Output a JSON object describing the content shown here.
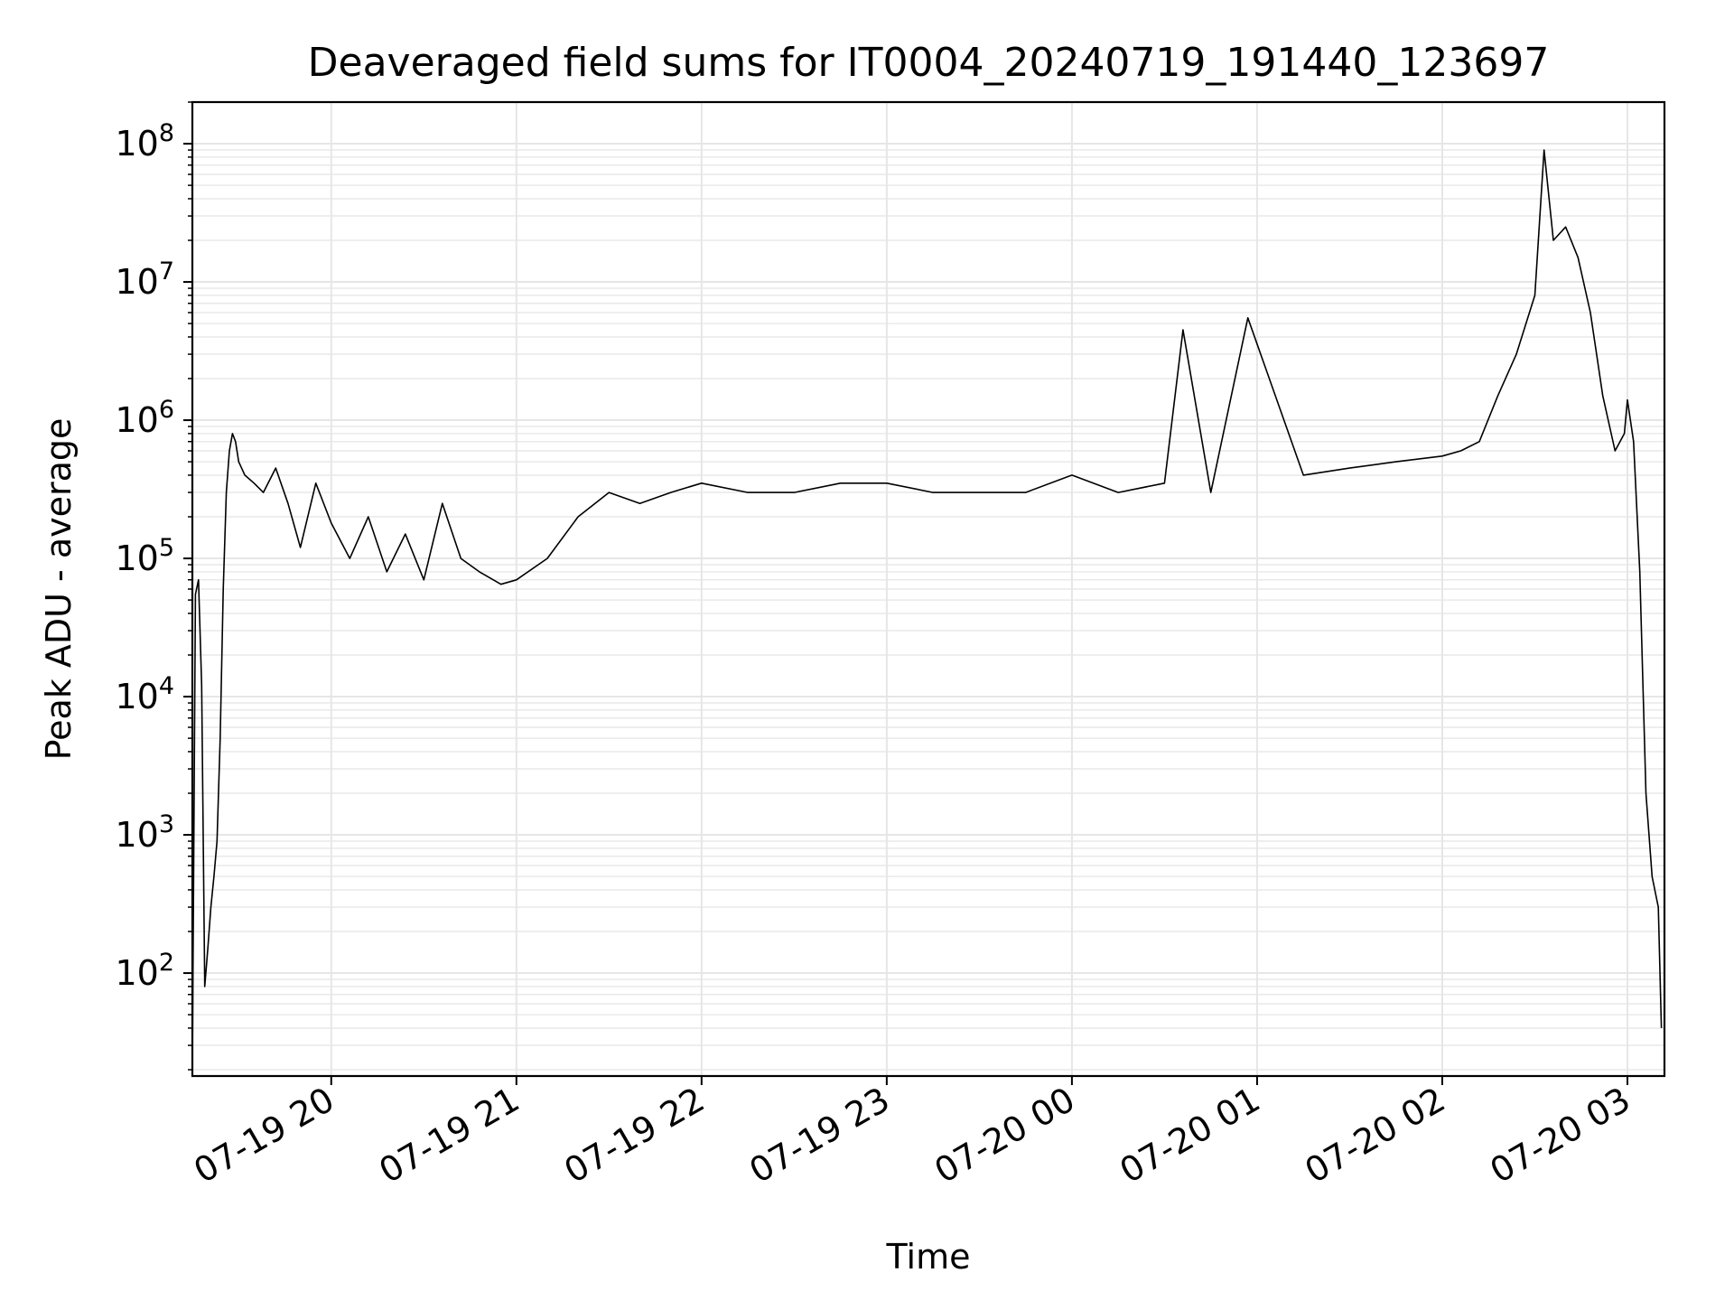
{
  "chart_data": {
    "type": "line",
    "title": "Deaveraged field sums for IT0004_20240719_191440_123697",
    "xlabel": "Time",
    "ylabel": "Peak ADU - average",
    "yscale": "log",
    "ylim": [
      18,
      200000000
    ],
    "xlim": [
      "2024-07-19 19:15",
      "2024-07-20 03:12"
    ],
    "grid": true,
    "grid_minor": true,
    "line_color": "#000000",
    "x_tick_labels": [
      "07-19 20",
      "07-19 21",
      "07-19 22",
      "07-19 23",
      "07-20 00",
      "07-20 01",
      "07-20 02",
      "07-20 03"
    ],
    "y_tick_labels": [
      {
        "base": "10",
        "exp": "2"
      },
      {
        "base": "10",
        "exp": "3"
      },
      {
        "base": "10",
        "exp": "4"
      },
      {
        "base": "10",
        "exp": "5"
      },
      {
        "base": "10",
        "exp": "6"
      },
      {
        "base": "10",
        "exp": "7"
      },
      {
        "base": "10",
        "exp": "8"
      }
    ],
    "series": [
      {
        "x": [
          "2024-07-19 19:15",
          "2024-07-19 19:16",
          "2024-07-19 19:17",
          "2024-07-19 19:18",
          "2024-07-19 19:19",
          "2024-07-19 19:20",
          "2024-07-19 19:21",
          "2024-07-19 19:22",
          "2024-07-19 19:23",
          "2024-07-19 19:24",
          "2024-07-19 19:25",
          "2024-07-19 19:26",
          "2024-07-19 19:27",
          "2024-07-19 19:28",
          "2024-07-19 19:29",
          "2024-07-19 19:30",
          "2024-07-19 19:32",
          "2024-07-19 19:35",
          "2024-07-19 19:38",
          "2024-07-19 19:42",
          "2024-07-19 19:46",
          "2024-07-19 19:50",
          "2024-07-19 19:55",
          "2024-07-19 20:00",
          "2024-07-19 20:06",
          "2024-07-19 20:12",
          "2024-07-19 20:18",
          "2024-07-19 20:24",
          "2024-07-19 20:30",
          "2024-07-19 20:36",
          "2024-07-19 20:42",
          "2024-07-19 20:48",
          "2024-07-19 20:55",
          "2024-07-19 21:00",
          "2024-07-19 21:10",
          "2024-07-19 21:20",
          "2024-07-19 21:30",
          "2024-07-19 21:40",
          "2024-07-19 21:50",
          "2024-07-19 22:00",
          "2024-07-19 22:15",
          "2024-07-19 22:30",
          "2024-07-19 22:45",
          "2024-07-19 23:00",
          "2024-07-19 23:15",
          "2024-07-19 23:30",
          "2024-07-19 23:45",
          "2024-07-20 00:00",
          "2024-07-20 00:15",
          "2024-07-20 00:30",
          "2024-07-20 00:36",
          "2024-07-20 00:45",
          "2024-07-20 00:57",
          "2024-07-20 01:15",
          "2024-07-20 01:30",
          "2024-07-20 01:45",
          "2024-07-20 02:00",
          "2024-07-20 02:06",
          "2024-07-20 02:12",
          "2024-07-20 02:18",
          "2024-07-20 02:24",
          "2024-07-20 02:30",
          "2024-07-20 02:33",
          "2024-07-20 02:36",
          "2024-07-20 02:40",
          "2024-07-20 02:44",
          "2024-07-20 02:48",
          "2024-07-20 02:52",
          "2024-07-20 02:56",
          "2024-07-20 02:59",
          "2024-07-20 03:00",
          "2024-07-20 03:02",
          "2024-07-20 03:04",
          "2024-07-20 03:06",
          "2024-07-20 03:08",
          "2024-07-20 03:10",
          "2024-07-20 03:11"
        ],
        "y": [
          20,
          55000,
          70000,
          12000,
          80,
          150,
          300,
          500,
          900,
          5000,
          60000,
          300000,
          600000,
          800000,
          700000,
          500000,
          400000,
          350000,
          300000,
          450000,
          250000,
          120000,
          350000,
          180000,
          100000,
          200000,
          80000,
          150000,
          70000,
          250000,
          100000,
          80000,
          65000,
          70000,
          100000,
          200000,
          300000,
          250000,
          300000,
          350000,
          300000,
          300000,
          350000,
          350000,
          300000,
          300000,
          300000,
          400000,
          300000,
          350000,
          4500000,
          300000,
          5500000,
          400000,
          450000,
          500000,
          550000,
          600000,
          700000,
          1500000,
          3000000,
          8000000,
          90000000,
          20000000,
          25000000,
          15000000,
          6000000,
          1500000,
          600000,
          800000,
          1400000,
          700000,
          80000,
          2000,
          500,
          300,
          40
        ]
      }
    ]
  }
}
